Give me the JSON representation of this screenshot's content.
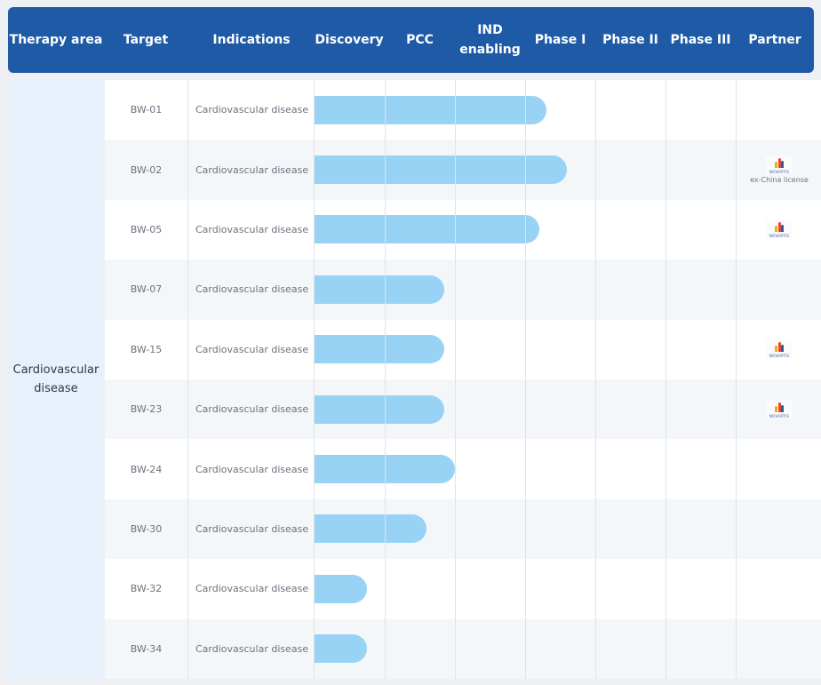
{
  "header": {
    "columns": [
      {
        "label": "Therapy area"
      },
      {
        "label": "Target"
      },
      {
        "label": "Indications"
      },
      {
        "label": "Discovery"
      },
      {
        "label": "PCC"
      },
      {
        "label": "IND\nenabling"
      },
      {
        "label": "Phase I"
      },
      {
        "label": "Phase II"
      },
      {
        "label": "Phase III"
      },
      {
        "label": "Partner"
      }
    ]
  },
  "therapy_area": "Cardiovascular\ndisease",
  "colors": {
    "header_bg": "#1f5aa6",
    "bar": "#98d3f5",
    "therapy_bg": "#e7f1fb"
  },
  "rows": [
    {
      "target": "BW-01",
      "indication": "Cardiovascular disease",
      "progress_stage": 3.3,
      "partner": null
    },
    {
      "target": "BW-02",
      "indication": "Cardiovascular disease",
      "progress_stage": 3.6,
      "partner": {
        "logo_text": "NOVARTIS",
        "note": "ex-China license"
      }
    },
    {
      "target": "BW-05",
      "indication": "Cardiovascular disease",
      "progress_stage": 3.2,
      "partner": {
        "logo_text": "NOVARTIS",
        "note": ""
      }
    },
    {
      "target": "BW-07",
      "indication": "Cardiovascular disease",
      "progress_stage": 1.85,
      "partner": null
    },
    {
      "target": "BW-15",
      "indication": "Cardiovascular disease",
      "progress_stage": 1.85,
      "partner": {
        "logo_text": "NOVARTIS",
        "note": ""
      }
    },
    {
      "target": "BW-23",
      "indication": "Cardiovascular disease",
      "progress_stage": 1.85,
      "partner": {
        "logo_text": "NOVARTIS",
        "note": ""
      }
    },
    {
      "target": "BW-24",
      "indication": "Cardiovascular disease",
      "progress_stage": 2.0,
      "partner": null
    },
    {
      "target": "BW-30",
      "indication": "Cardiovascular disease",
      "progress_stage": 1.6,
      "partner": null
    },
    {
      "target": "BW-32",
      "indication": "Cardiovascular disease",
      "progress_stage": 0.75,
      "partner": null
    },
    {
      "target": "BW-34",
      "indication": "Cardiovascular disease",
      "progress_stage": 0.75,
      "partner": null
    }
  ]
}
